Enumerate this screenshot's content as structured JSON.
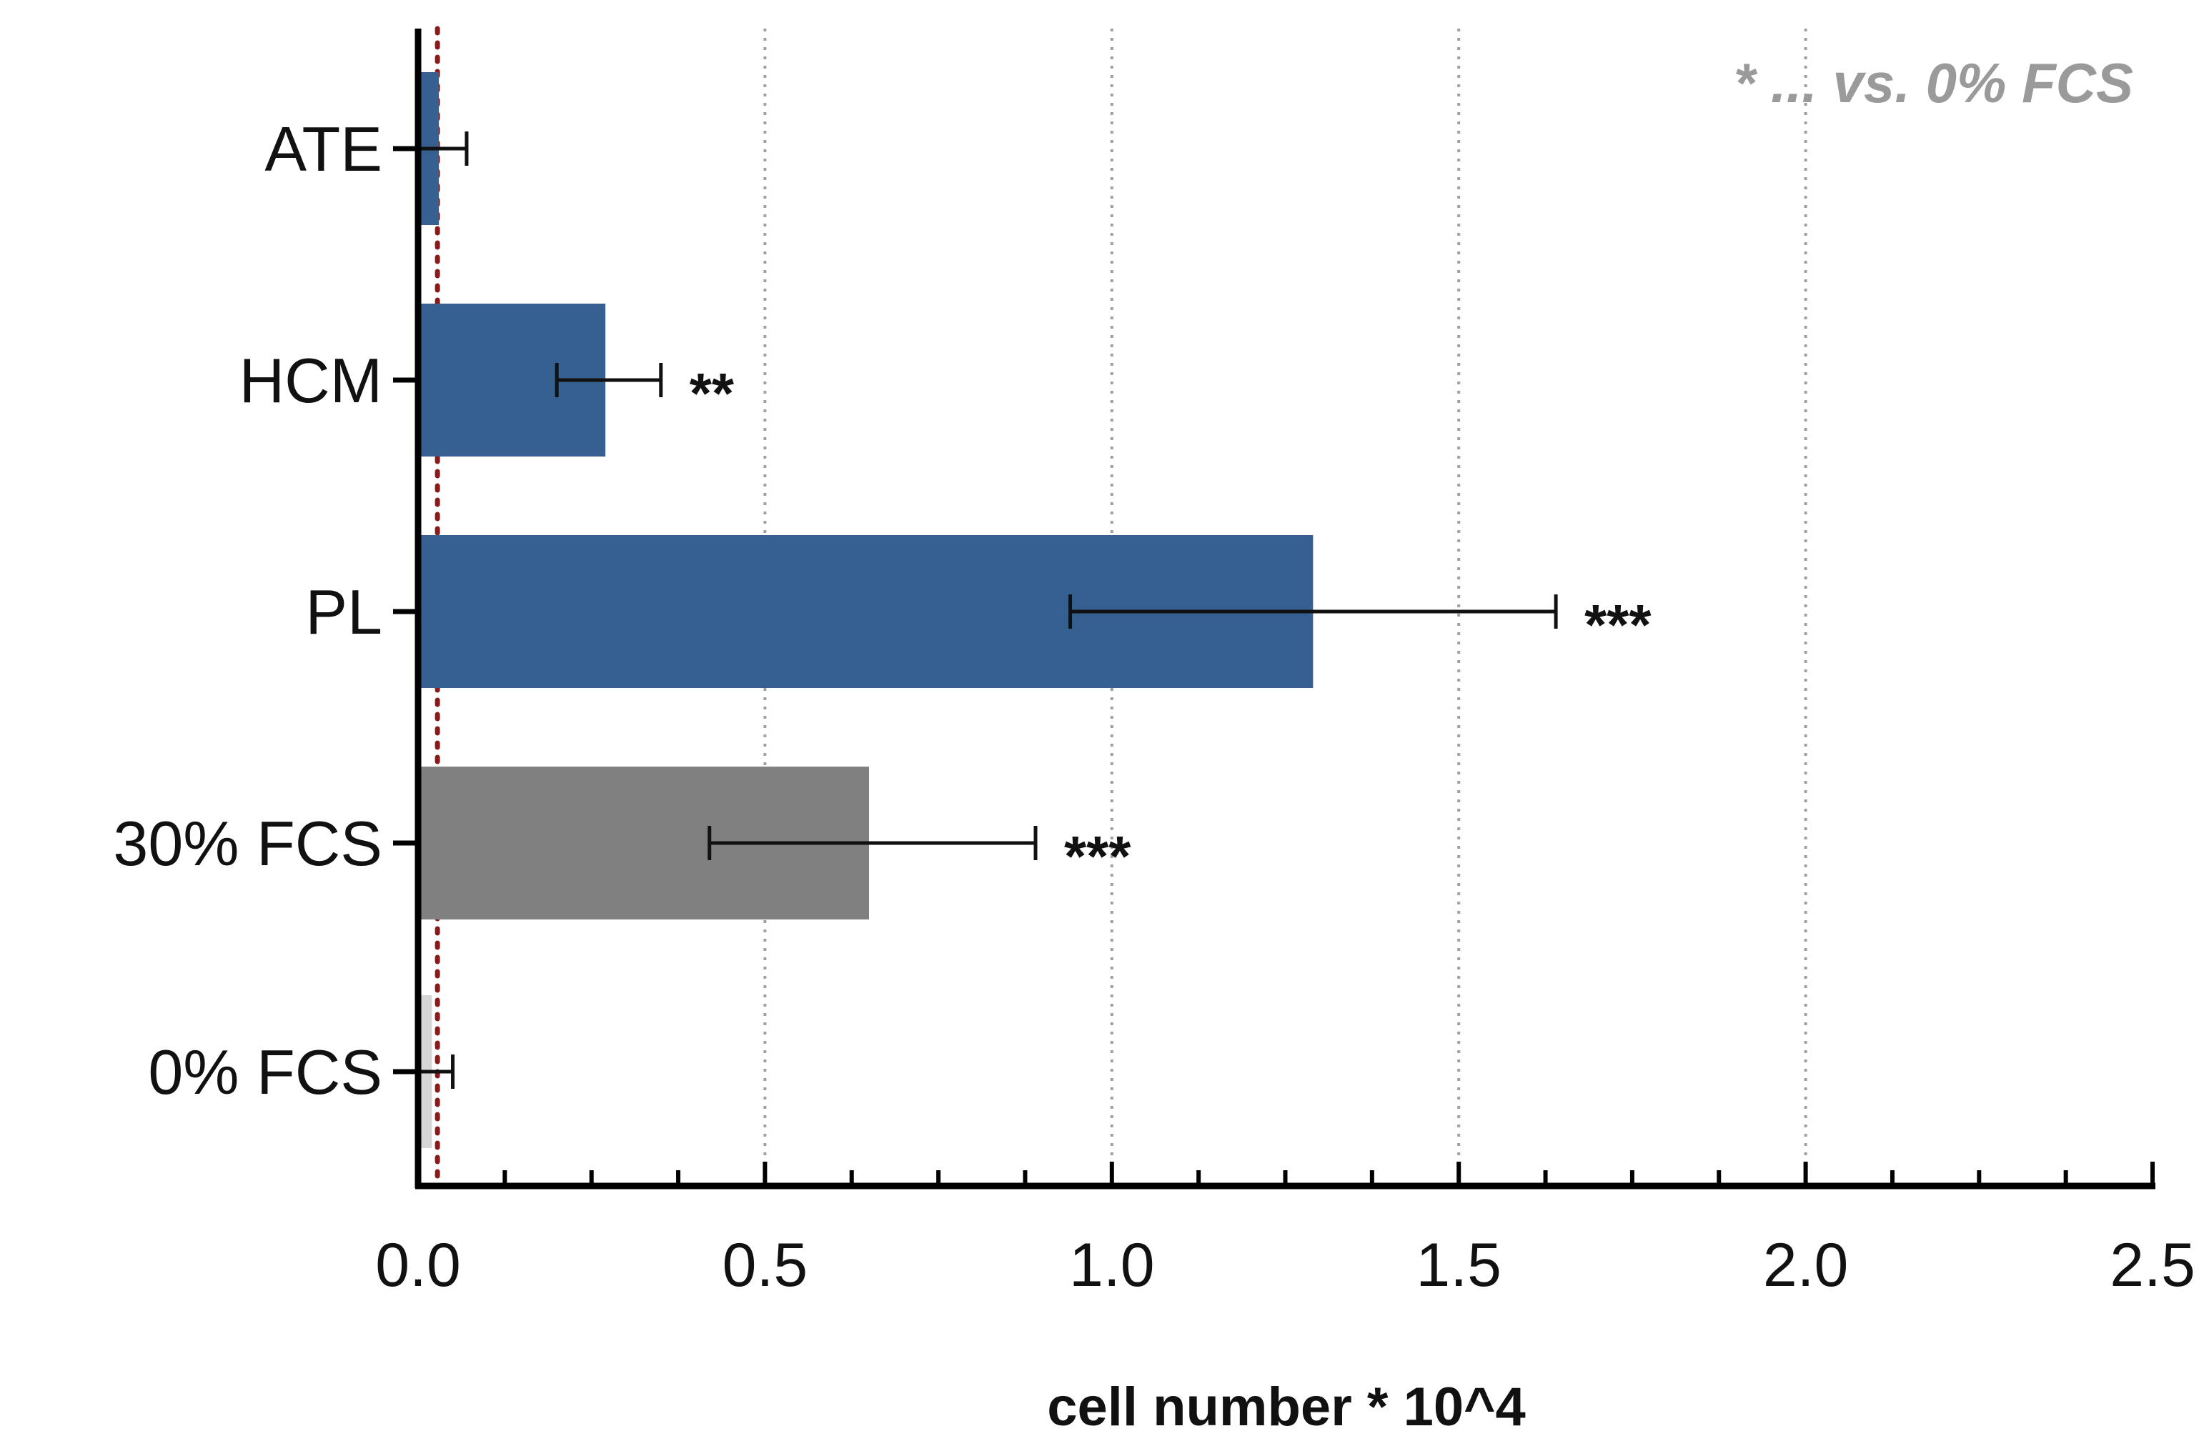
{
  "chart_data": {
    "type": "bar",
    "orientation": "horizontal",
    "categories": [
      "ATE",
      "HCM",
      "PL",
      "30% FCS",
      "0% FCS"
    ],
    "values": [
      0.03,
      0.27,
      1.29,
      0.65,
      0.02
    ],
    "error_low": [
      0.0,
      0.2,
      0.94,
      0.42,
      0.0
    ],
    "error_high": [
      0.07,
      0.35,
      1.64,
      0.89,
      0.05
    ],
    "significance": [
      "",
      "**",
      "***",
      "***",
      ""
    ],
    "colors": [
      "#36608f",
      "#36608f",
      "#36608f",
      "#808080",
      "#d6d6d6"
    ],
    "xlabel": "cell number * 10^4",
    "xlim": [
      0,
      2.5
    ],
    "xticks": [
      "0.0",
      "0.5",
      "1.0",
      "1.5",
      "2.0",
      "2.5"
    ],
    "xtick_values": [
      0,
      0.5,
      1.0,
      1.5,
      2.0,
      2.5
    ],
    "minor_tick_step": 0.125,
    "grid": "vertical dotted at major ticks",
    "reference_line": {
      "value": 0.03,
      "color": "#8b1a1a",
      "style": "dotted"
    },
    "annotation": "* ... vs. 0% FCS"
  }
}
